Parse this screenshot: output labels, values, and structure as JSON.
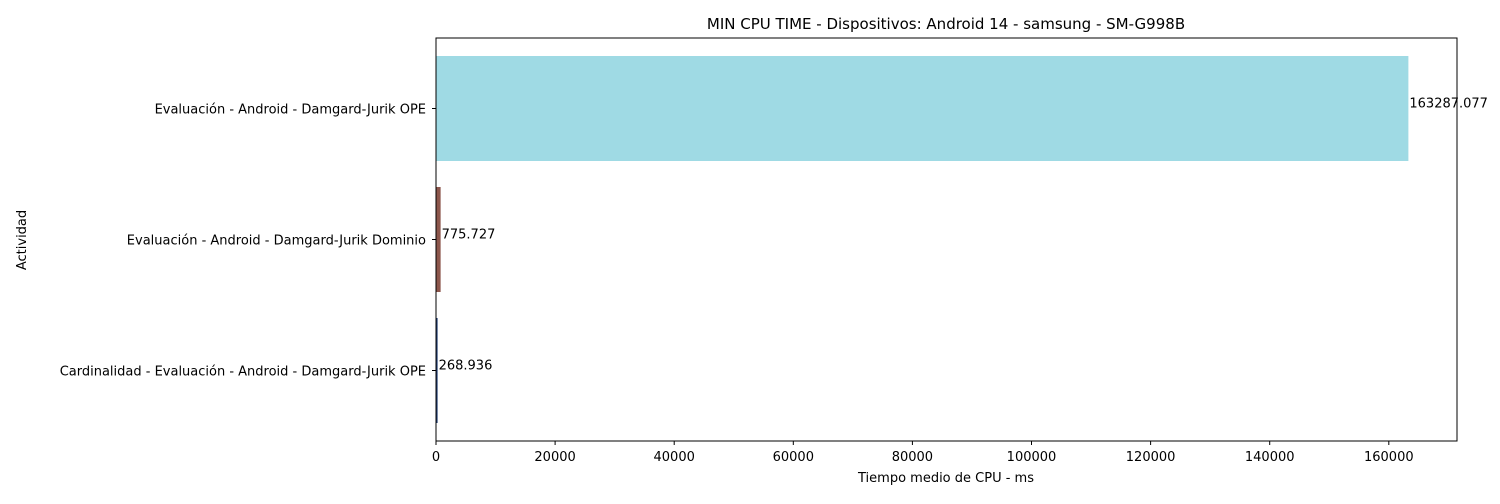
{
  "chart_data": {
    "type": "bar",
    "orientation": "horizontal",
    "title": "MIN CPU TIME - Dispositivos: Android 14 - samsung - SM-G998B",
    "xlabel": "Tiempo medio de CPU - ms",
    "ylabel": "Actividad",
    "categories": [
      "Evaluación - Android - Damgard-Jurik OPE",
      "Evaluación - Android - Damgard-Jurik Dominio",
      "Cardinalidad - Evaluación - Android - Damgard-Jurik OPE"
    ],
    "values": [
      163287.077,
      775.727,
      268.936
    ],
    "value_labels": [
      "163287.077",
      "775.727",
      "268.936"
    ],
    "colors": [
      "#9fdae4",
      "#8c564b",
      "#1f3c73"
    ],
    "xlim": [
      0,
      171451
    ],
    "xticks": [
      0,
      20000,
      40000,
      60000,
      80000,
      100000,
      120000,
      140000,
      160000
    ],
    "xtick_labels": [
      "0",
      "20000",
      "40000",
      "60000",
      "80000",
      "100000",
      "120000",
      "140000",
      "160000"
    ],
    "grid": false,
    "legend": "none"
  }
}
